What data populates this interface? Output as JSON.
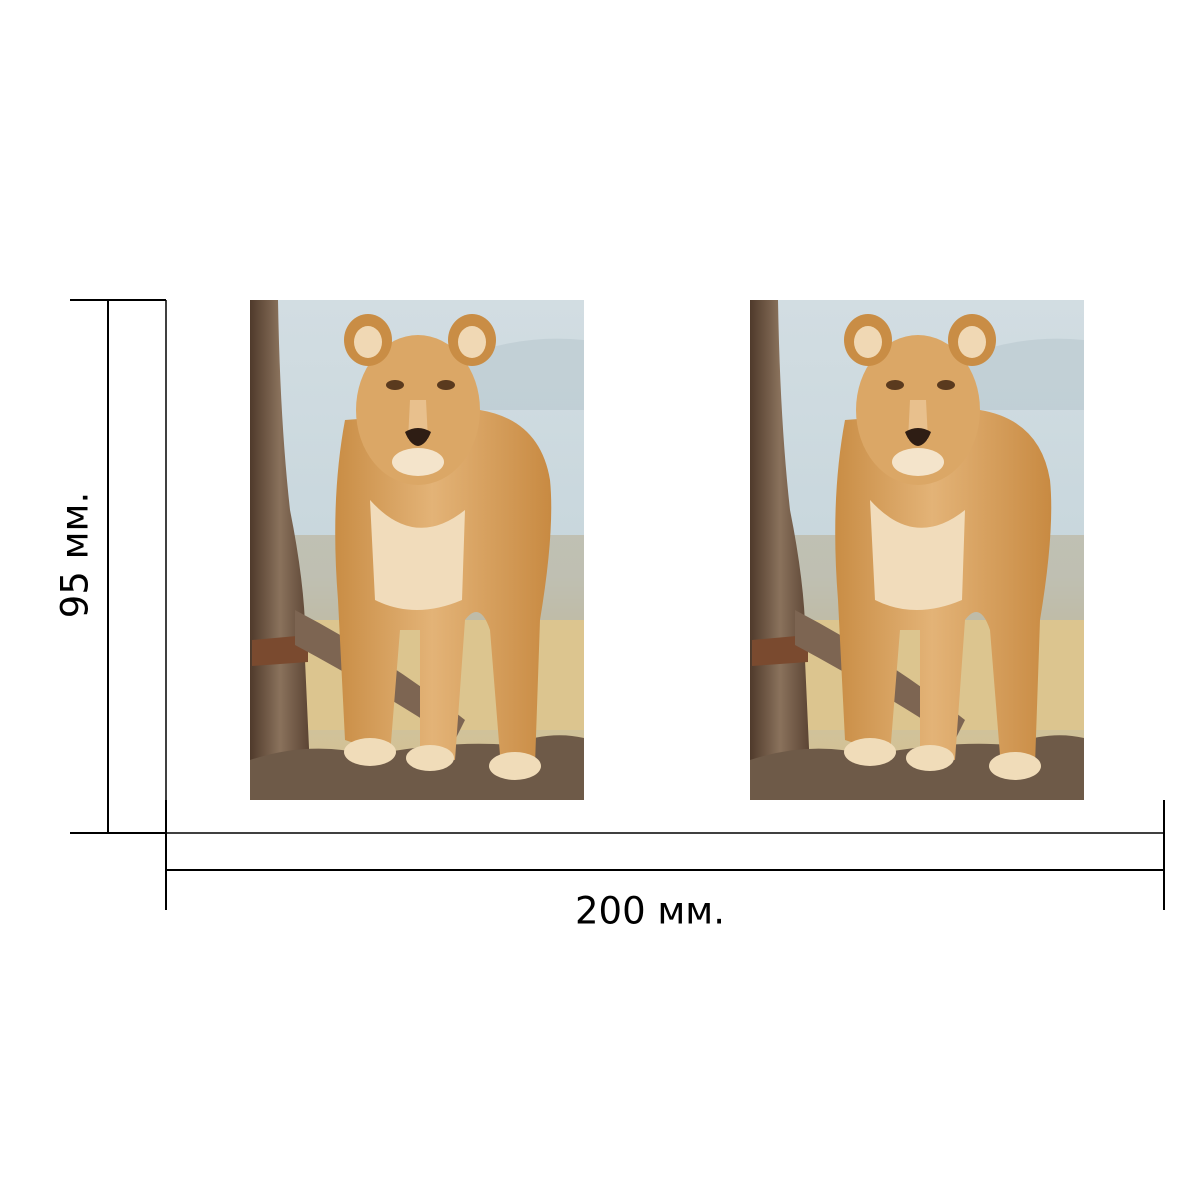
{
  "dimensions": {
    "height_label": "95 мм.",
    "width_label": "200 мм."
  },
  "product": {
    "panels": [
      {
        "subject": "lioness-photo"
      },
      {
        "subject": "lioness-photo"
      }
    ]
  },
  "colors": {
    "line": "#000000",
    "background": "#ffffff",
    "sky": "#c9d9e0",
    "fur": "#d9a35e",
    "ground": "#d8c08a",
    "bark": "#6b4f3a"
  }
}
